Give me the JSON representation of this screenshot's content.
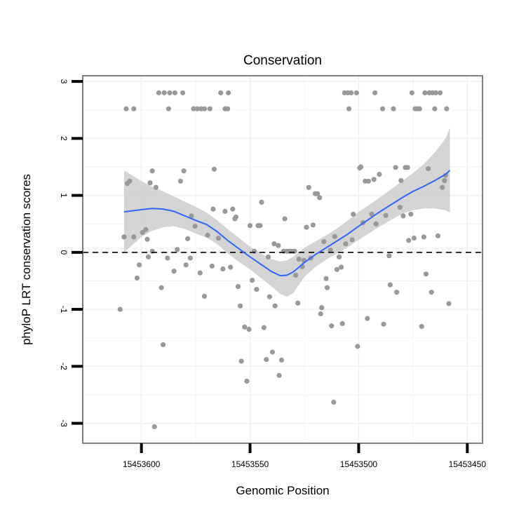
{
  "chart_data": {
    "type": "scatter",
    "title": "Conservation",
    "xlabel": "Genomic Position",
    "ylabel": "phyloP LRT conservation scores",
    "x_reversed": true,
    "xlim": [
      15453627,
      15453443
    ],
    "ylim": [
      -3.35,
      3.1
    ],
    "x_ticks": [
      15453600,
      15453550,
      15453500,
      15453450
    ],
    "x_tick_labels": [
      "15453600",
      "15453550",
      "15453500",
      "15453450"
    ],
    "y_ticks": [
      -3,
      -2,
      -1,
      0,
      1,
      2,
      3
    ],
    "y_tick_labels": [
      "-3",
      "-2",
      "-1",
      "0",
      "1",
      "2",
      "3"
    ],
    "reference_line": {
      "y": 0,
      "style": "dashed"
    },
    "grid": true,
    "colors": {
      "points": "#999999",
      "trend": "#3366ff",
      "band": "#cccccc",
      "panel_border": "#7f7f7f",
      "grid": "#f2f2f2"
    },
    "points": [
      [
        15453608.0,
        0.27
      ],
      [
        15453603.5,
        0.27
      ],
      [
        15453599.5,
        0.35
      ],
      [
        15453597.3,
        0.23
      ],
      [
        15453595.0,
        0.02
      ],
      [
        15453609.8,
        -1.0
      ],
      [
        15453607.0,
        2.52
      ],
      [
        15453606.5,
        1.21
      ],
      [
        15453605.4,
        1.25
      ],
      [
        15453603.5,
        2.52
      ],
      [
        15453602.0,
        -0.45
      ],
      [
        15453601.0,
        -0.22
      ],
      [
        15453598.0,
        0.4
      ],
      [
        15453596.8,
        -0.08
      ],
      [
        15453596.0,
        1.22
      ],
      [
        15453595.0,
        1.43
      ],
      [
        15453594.0,
        -3.06
      ],
      [
        15453593.3,
        1.14
      ],
      [
        15453592.0,
        2.8
      ],
      [
        15453590.8,
        -0.62
      ],
      [
        15453590.0,
        -1.62
      ],
      [
        15453589.5,
        2.8
      ],
      [
        15453588.0,
        -0.1
      ],
      [
        15453587.5,
        2.52
      ],
      [
        15453587.0,
        2.8
      ],
      [
        15453585.0,
        -0.33
      ],
      [
        15453584.6,
        2.8
      ],
      [
        15453583.5,
        0.05
      ],
      [
        15453582.0,
        1.25
      ],
      [
        15453581.0,
        2.8
      ],
      [
        15453580.5,
        1.43
      ],
      [
        15453579.5,
        -0.22
      ],
      [
        15453578.7,
        0.24
      ],
      [
        15453577.5,
        -0.1
      ],
      [
        15453577.0,
        0.64
      ],
      [
        15453576.0,
        2.52
      ],
      [
        15453575.3,
        0.46
      ],
      [
        15453574.3,
        2.52
      ],
      [
        15453573.0,
        -0.36
      ],
      [
        15453572.5,
        2.52
      ],
      [
        15453571.0,
        -0.77
      ],
      [
        15453571.0,
        2.52
      ],
      [
        15453569.5,
        0.3
      ],
      [
        15453568.5,
        2.52
      ],
      [
        15453567.5,
        -0.24
      ],
      [
        15453567.0,
        0.76
      ],
      [
        15453566.5,
        1.46
      ],
      [
        15453564.5,
        0.25
      ],
      [
        15453563.5,
        2.8
      ],
      [
        15453562.5,
        -0.29
      ],
      [
        15453561.5,
        0.72
      ],
      [
        15453561.5,
        2.52
      ],
      [
        15453560.3,
        2.52
      ],
      [
        15453560.0,
        2.8
      ],
      [
        15453559.0,
        -0.26
      ],
      [
        15453558.0,
        0.76
      ],
      [
        15453557.0,
        0.59
      ],
      [
        15453556.5,
        0.62
      ],
      [
        15453555.5,
        -0.6
      ],
      [
        15453554.5,
        -0.94
      ],
      [
        15453554.0,
        -1.91
      ],
      [
        15453552.5,
        -1.31
      ],
      [
        15453551.5,
        -2.26
      ],
      [
        15453550.5,
        -1.35
      ],
      [
        15453550.0,
        0.47
      ],
      [
        15453549.0,
        -0.49
      ],
      [
        15453548.0,
        0.02
      ],
      [
        15453547.0,
        -0.65
      ],
      [
        15453546.3,
        0.47
      ],
      [
        15453545.4,
        0.47
      ],
      [
        15453544.7,
        0.88
      ],
      [
        15453543.6,
        -1.32
      ],
      [
        15453542.5,
        -1.88
      ],
      [
        15453541.6,
        -0.08
      ],
      [
        15453541.0,
        -0.78
      ],
      [
        15453539.7,
        -1.75
      ],
      [
        15453538.9,
        0.15
      ],
      [
        15453538.5,
        -0.94
      ],
      [
        15453537.0,
        0.12
      ],
      [
        15453536.6,
        -2.16
      ],
      [
        15453535.5,
        -1.89
      ],
      [
        15453534.5,
        0.02
      ],
      [
        15453534.0,
        0.59
      ],
      [
        15453533.0,
        0.02
      ],
      [
        15453532.0,
        0.02
      ],
      [
        15453531.0,
        0.02
      ],
      [
        15453530.0,
        0.02
      ],
      [
        15453529.5,
        0.02
      ],
      [
        15453529.0,
        -0.4
      ],
      [
        15453528.0,
        -0.89
      ],
      [
        15453527.5,
        -0.12
      ],
      [
        15453526.0,
        -0.25
      ],
      [
        15453525.2,
        -0.14
      ],
      [
        15453524.0,
        0.44
      ],
      [
        15453523.0,
        1.14
      ],
      [
        15453522.0,
        -0.1
      ],
      [
        15453521.0,
        0.48
      ],
      [
        15453520.0,
        1.03
      ],
      [
        15453519.0,
        1.03
      ],
      [
        15453518.0,
        0.96
      ],
      [
        15453517.5,
        -1.08
      ],
      [
        15453517.0,
        -0.97
      ],
      [
        15453516.0,
        0.19
      ],
      [
        15453515.0,
        -0.46
      ],
      [
        15453514.5,
        -0.62
      ],
      [
        15453513.0,
        0.04
      ],
      [
        15453512.5,
        -1.29
      ],
      [
        15453511.5,
        -2.63
      ],
      [
        15453511.0,
        0.28
      ],
      [
        15453510.0,
        -0.3
      ],
      [
        15453509.0,
        -0.08
      ],
      [
        15453508.0,
        -0.26
      ],
      [
        15453507.5,
        -1.25
      ],
      [
        15453506.5,
        2.8
      ],
      [
        15453506.0,
        0.15
      ],
      [
        15453505.0,
        2.8
      ],
      [
        15453504.5,
        2.52
      ],
      [
        15453503.5,
        2.8
      ],
      [
        15453503.0,
        0.22
      ],
      [
        15453502.5,
        0.67
      ],
      [
        15453501.0,
        2.8
      ],
      [
        15453500.5,
        -1.65
      ],
      [
        15453499.5,
        1.48
      ],
      [
        15453499.0,
        1.5
      ],
      [
        15453498.0,
        0.52
      ],
      [
        15453497.0,
        1.25
      ],
      [
        15453496.0,
        -1.16
      ],
      [
        15453495.5,
        1.25
      ],
      [
        15453494.0,
        0.67
      ],
      [
        15453493.0,
        1.28
      ],
      [
        15453492.5,
        2.8
      ],
      [
        15453492.0,
        0.5
      ],
      [
        15453490.5,
        1.37
      ],
      [
        15453489.0,
        2.52
      ],
      [
        15453488.5,
        -1.26
      ],
      [
        15453487.5,
        0.65
      ],
      [
        15453486.0,
        -0.06
      ],
      [
        15453485.5,
        -0.57
      ],
      [
        15453484.0,
        2.52
      ],
      [
        15453483.0,
        1.49
      ],
      [
        15453482.5,
        -0.7
      ],
      [
        15453481.0,
        0.79
      ],
      [
        15453480.5,
        1.26
      ],
      [
        15453479.5,
        0.64
      ],
      [
        15453478.5,
        1.49
      ],
      [
        15453477.5,
        1.49
      ],
      [
        15453477.0,
        0.21
      ],
      [
        15453476.0,
        0.67
      ],
      [
        15453475.5,
        2.8
      ],
      [
        15453474.5,
        0.25
      ],
      [
        15453474.0,
        2.52
      ],
      [
        15453473.0,
        2.52
      ],
      [
        15453472.0,
        2.52
      ],
      [
        15453471.0,
        -1.3
      ],
      [
        15453470.0,
        0.27
      ],
      [
        15453469.5,
        2.8
      ],
      [
        15453469.0,
        -0.38
      ],
      [
        15453468.0,
        1.47
      ],
      [
        15453467.5,
        2.8
      ],
      [
        15453466.5,
        -0.7
      ],
      [
        15453466.0,
        2.8
      ],
      [
        15453465.0,
        2.52
      ],
      [
        15453464.5,
        2.8
      ],
      [
        15453463.5,
        0.29
      ],
      [
        15453462.5,
        2.8
      ],
      [
        15453461.5,
        1.14
      ],
      [
        15453460.5,
        1.26
      ],
      [
        15453460.0,
        1.35
      ],
      [
        15453459.5,
        2.52
      ],
      [
        15453458.5,
        -0.9
      ]
    ],
    "trend": [
      [
        15453608.0,
        0.71
      ],
      [
        15453600.0,
        0.75
      ],
      [
        15453595.0,
        0.77
      ],
      [
        15453590.0,
        0.76
      ],
      [
        15453585.0,
        0.72
      ],
      [
        15453580.0,
        0.64
      ],
      [
        15453575.0,
        0.56
      ],
      [
        15453570.0,
        0.49
      ],
      [
        15453565.0,
        0.36
      ],
      [
        15453560.0,
        0.2
      ],
      [
        15453555.0,
        0.06
      ],
      [
        15453550.0,
        -0.08
      ],
      [
        15453545.0,
        -0.21
      ],
      [
        15453540.0,
        -0.34
      ],
      [
        15453536.0,
        -0.41
      ],
      [
        15453533.0,
        -0.4
      ],
      [
        15453530.0,
        -0.34
      ],
      [
        15453525.0,
        -0.18
      ],
      [
        15453520.0,
        -0.04
      ],
      [
        15453515.0,
        0.08
      ],
      [
        15453510.0,
        0.2
      ],
      [
        15453505.0,
        0.32
      ],
      [
        15453500.0,
        0.46
      ],
      [
        15453495.0,
        0.59
      ],
      [
        15453490.0,
        0.72
      ],
      [
        15453485.0,
        0.84
      ],
      [
        15453480.0,
        0.96
      ],
      [
        15453475.0,
        1.07
      ],
      [
        15453470.0,
        1.16
      ],
      [
        15453465.0,
        1.26
      ],
      [
        15453460.0,
        1.37
      ],
      [
        15453458.0,
        1.44
      ]
    ],
    "band_upper": [
      [
        15453608.0,
        1.44
      ],
      [
        15453600.0,
        1.25
      ],
      [
        15453595.0,
        1.15
      ],
      [
        15453590.0,
        1.07
      ],
      [
        15453585.0,
        0.98
      ],
      [
        15453580.0,
        0.89
      ],
      [
        15453575.0,
        0.8
      ],
      [
        15453570.0,
        0.7
      ],
      [
        15453565.0,
        0.56
      ],
      [
        15453560.0,
        0.4
      ],
      [
        15453555.0,
        0.25
      ],
      [
        15453550.0,
        0.1
      ],
      [
        15453545.0,
        -0.02
      ],
      [
        15453540.0,
        -0.12
      ],
      [
        15453536.0,
        -0.16
      ],
      [
        15453533.0,
        -0.14
      ],
      [
        15453530.0,
        -0.07
      ],
      [
        15453525.0,
        0.08
      ],
      [
        15453520.0,
        0.19
      ],
      [
        15453515.0,
        0.3
      ],
      [
        15453510.0,
        0.42
      ],
      [
        15453505.0,
        0.56
      ],
      [
        15453500.0,
        0.71
      ],
      [
        15453495.0,
        0.84
      ],
      [
        15453490.0,
        0.97
      ],
      [
        15453485.0,
        1.11
      ],
      [
        15453480.0,
        1.25
      ],
      [
        15453475.0,
        1.39
      ],
      [
        15453470.0,
        1.55
      ],
      [
        15453465.0,
        1.75
      ],
      [
        15453460.0,
        2.0
      ],
      [
        15453458.0,
        2.19
      ]
    ],
    "band_lower": [
      [
        15453608.0,
        0.0
      ],
      [
        15453600.0,
        0.27
      ],
      [
        15453595.0,
        0.38
      ],
      [
        15453590.0,
        0.44
      ],
      [
        15453585.0,
        0.46
      ],
      [
        15453580.0,
        0.41
      ],
      [
        15453575.0,
        0.33
      ],
      [
        15453570.0,
        0.26
      ],
      [
        15453565.0,
        0.14
      ],
      [
        15453560.0,
        -0.03
      ],
      [
        15453555.0,
        -0.17
      ],
      [
        15453550.0,
        -0.3
      ],
      [
        15453545.0,
        -0.45
      ],
      [
        15453540.0,
        -0.6
      ],
      [
        15453536.0,
        -0.73
      ],
      [
        15453533.0,
        -0.78
      ],
      [
        15453530.0,
        -0.71
      ],
      [
        15453525.0,
        -0.43
      ],
      [
        15453520.0,
        -0.26
      ],
      [
        15453515.0,
        -0.13
      ],
      [
        15453510.0,
        -0.02
      ],
      [
        15453505.0,
        0.09
      ],
      [
        15453500.0,
        0.22
      ],
      [
        15453495.0,
        0.34
      ],
      [
        15453490.0,
        0.46
      ],
      [
        15453485.0,
        0.57
      ],
      [
        15453480.0,
        0.68
      ],
      [
        15453475.0,
        0.74
      ],
      [
        15453470.0,
        0.77
      ],
      [
        15453465.0,
        0.77
      ],
      [
        15453460.0,
        0.74
      ],
      [
        15453458.0,
        0.7
      ]
    ]
  }
}
